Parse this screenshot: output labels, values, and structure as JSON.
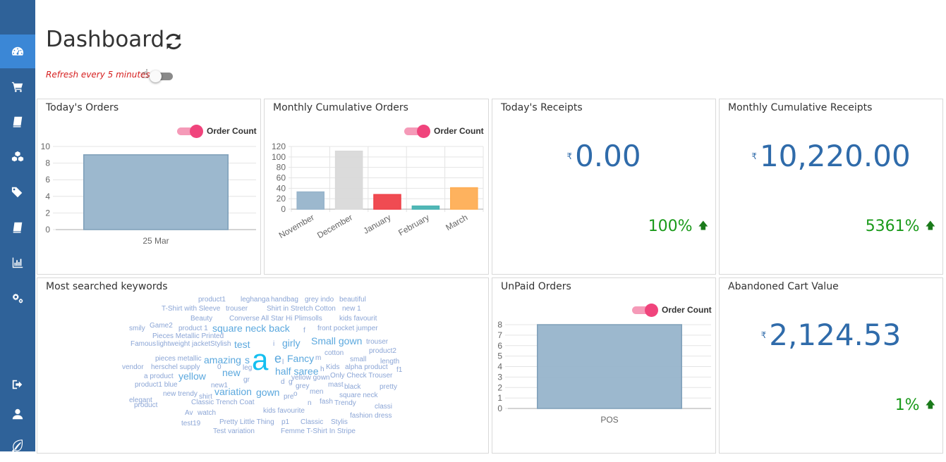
{
  "sidebar": {
    "items": [
      {
        "icon": "dashboard-icon",
        "active": true
      },
      {
        "icon": "cart-icon"
      },
      {
        "icon": "book-icon"
      },
      {
        "icon": "cubes-icon"
      },
      {
        "icon": "tags-icon"
      },
      {
        "icon": "book-icon"
      },
      {
        "icon": "bar-chart-icon"
      },
      {
        "icon": "gears-icon"
      },
      {
        "icon": "sign-out-icon"
      },
      {
        "icon": "user-icon"
      },
      {
        "icon": "leaf-icon"
      }
    ]
  },
  "header": {
    "title": "Dashboard",
    "refresh_note": "Refresh every 5 minutes"
  },
  "cards": {
    "todays_orders": {
      "title": "Today's Orders",
      "legend": "Order Count",
      "chart_data": {
        "type": "bar",
        "categories": [
          "25 Mar"
        ],
        "values": [
          9
        ],
        "ylim": [
          0,
          10
        ],
        "yticks": [
          "0",
          "2",
          "4",
          "6",
          "8",
          "10"
        ],
        "legend": [
          "Order Count"
        ],
        "grid": true
      }
    },
    "monthly_orders": {
      "title": "Monthly Cumulative Orders",
      "legend": "Order Count",
      "chart_data": {
        "type": "bar",
        "categories": [
          "November",
          "December",
          "January",
          "February",
          "March"
        ],
        "values": [
          33,
          111,
          28,
          6,
          41
        ],
        "colors": [
          "#97b4cb",
          "#d9d9d9",
          "#ef4149",
          "#48b3b2",
          "#feae55"
        ],
        "ylim": [
          0,
          120
        ],
        "yticks": [
          "0",
          "20",
          "40",
          "60",
          "80",
          "100",
          "120"
        ],
        "legend": [
          "Order Count"
        ],
        "grid": true
      }
    },
    "todays_receipts": {
      "title": "Today's Receipts",
      "currency": "₹",
      "value": "0.00",
      "change": "100%"
    },
    "monthly_receipts": {
      "title": "Monthly Cumulative Receipts",
      "currency": "₹",
      "value": "10,220.00",
      "change": "5361%"
    },
    "keywords": {
      "title": "Most searched keywords",
      "words": [
        {
          "t": "product1",
          "s": 10
        },
        {
          "t": "leghanga",
          "s": 10
        },
        {
          "t": "handbag",
          "s": 10
        },
        {
          "t": "grey indo",
          "s": 10
        },
        {
          "t": "beautiful",
          "s": 10
        },
        {
          "t": "T-Shirt with Sleeve",
          "s": 10
        },
        {
          "t": "trouser",
          "s": 10
        },
        {
          "t": "Shirt in Stretch Cotton",
          "s": 10
        },
        {
          "t": "new 1",
          "s": 10
        },
        {
          "t": "Beauty",
          "s": 10
        },
        {
          "t": "Converse All Star Hi Plimsolls",
          "s": 10
        },
        {
          "t": "kids favourit",
          "s": 10
        },
        {
          "t": "Game2",
          "s": 10
        },
        {
          "t": "smily",
          "s": 10
        },
        {
          "t": "product 1",
          "s": 10
        },
        {
          "t": "square neck back",
          "s": 14
        },
        {
          "t": "front pocket jumper",
          "s": 10
        },
        {
          "t": "f",
          "s": 10
        },
        {
          "t": "Pieces Metallic Printed",
          "s": 10
        },
        {
          "t": "Famous",
          "s": 10
        },
        {
          "t": "lightweight jacket",
          "s": 10
        },
        {
          "t": "Stylish",
          "s": 10
        },
        {
          "t": "test",
          "s": 14
        },
        {
          "t": "girly",
          "s": 14
        },
        {
          "t": "Small gown",
          "s": 14
        },
        {
          "t": "trouser",
          "s": 10
        },
        {
          "t": "i",
          "s": 10
        },
        {
          "t": "product2",
          "s": 10
        },
        {
          "t": "cotton",
          "s": 10
        },
        {
          "t": "pieces metallic",
          "s": 10
        },
        {
          "t": "amazing",
          "s": 14
        },
        {
          "t": "s",
          "s": 14
        },
        {
          "t": "e",
          "s": 18
        },
        {
          "t": "l",
          "s": 10
        },
        {
          "t": "Fancy",
          "s": 14
        },
        {
          "t": "m",
          "s": 10
        },
        {
          "t": "small",
          "s": 10
        },
        {
          "t": "length",
          "s": 10
        },
        {
          "t": "vendor",
          "s": 10
        },
        {
          "t": "herschel supply",
          "s": 10
        },
        {
          "t": "0",
          "s": 10
        },
        {
          "t": "leg",
          "s": 10
        },
        {
          "t": "a",
          "s": 42
        },
        {
          "t": "half saree",
          "s": 14
        },
        {
          "t": "h",
          "s": 10
        },
        {
          "t": "Kids",
          "s": 10
        },
        {
          "t": "alpha product",
          "s": 10
        },
        {
          "t": "f1",
          "s": 10
        },
        {
          "t": "new",
          "s": 14
        },
        {
          "t": "a product",
          "s": 10
        },
        {
          "t": "yellow",
          "s": 14
        },
        {
          "t": "gr",
          "s": 10
        },
        {
          "t": "d",
          "s": 10
        },
        {
          "t": "g",
          "s": 10
        },
        {
          "t": "yellow gown",
          "s": 10
        },
        {
          "t": "Only Check Trouser",
          "s": 10
        },
        {
          "t": "product1 blue",
          "s": 10
        },
        {
          "t": "new1",
          "s": 10
        },
        {
          "t": "grey",
          "s": 10
        },
        {
          "t": "mast",
          "s": 10
        },
        {
          "t": "men",
          "s": 10
        },
        {
          "t": "black",
          "s": 10
        },
        {
          "t": "pretty",
          "s": 10
        },
        {
          "t": "new trendy",
          "s": 10
        },
        {
          "t": "variation",
          "s": 14
        },
        {
          "t": "gown",
          "s": 14
        },
        {
          "t": "pre",
          "s": 10
        },
        {
          "t": "o",
          "s": 10
        },
        {
          "t": "square neck",
          "s": 10
        },
        {
          "t": "elegant",
          "s": 10
        },
        {
          "t": "shirt",
          "s": 10
        },
        {
          "t": "fash",
          "s": 10
        },
        {
          "t": "product",
          "s": 10
        },
        {
          "t": "Classic Trench Coat",
          "s": 10
        },
        {
          "t": "n",
          "s": 10
        },
        {
          "t": "Trendy",
          "s": 10
        },
        {
          "t": "classi",
          "s": 10
        },
        {
          "t": "Av",
          "s": 10
        },
        {
          "t": "watch",
          "s": 10
        },
        {
          "t": "kids favourite",
          "s": 10
        },
        {
          "t": "fashion dress",
          "s": 10
        },
        {
          "t": "Pretty Little Thing",
          "s": 10
        },
        {
          "t": "p1",
          "s": 10
        },
        {
          "t": "Classic",
          "s": 10
        },
        {
          "t": "Stylis",
          "s": 10
        },
        {
          "t": "test19",
          "s": 10
        },
        {
          "t": "Test variation",
          "s": 10
        },
        {
          "t": "Femme T-Shirt In Stripe",
          "s": 10
        }
      ]
    },
    "unpaid_orders": {
      "title": "UnPaid Orders",
      "legend": "Order Count",
      "chart_data": {
        "type": "bar",
        "categories": [
          "POS"
        ],
        "values": [
          8
        ],
        "ylim": [
          0,
          8
        ],
        "yticks": [
          "0",
          "1",
          "2",
          "3",
          "4",
          "5",
          "6",
          "7",
          "8"
        ],
        "legend": [
          "Order Count"
        ],
        "grid": true
      }
    },
    "abandoned_cart": {
      "title": "Abandoned Cart Value",
      "currency": "₹",
      "value": "2,124.53",
      "change": "1%"
    }
  }
}
